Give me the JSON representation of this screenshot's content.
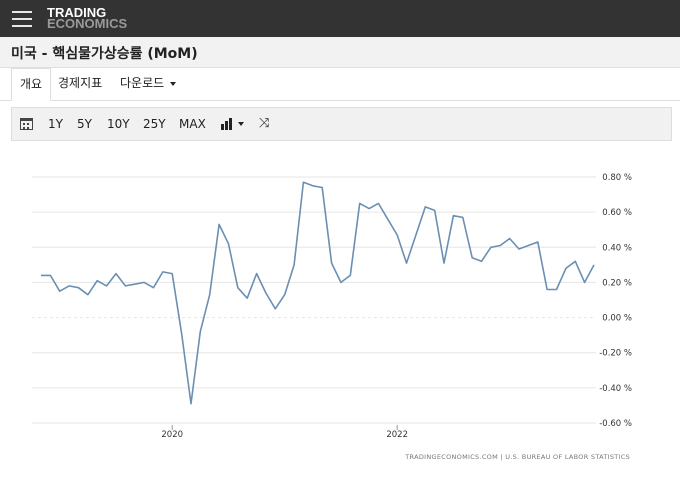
{
  "header": {
    "logo_line1": "TRADING",
    "logo_line2": "ECONOMICS",
    "menu_icon": "hamburger-menu-icon"
  },
  "title": "미국 - 핵심물가상승률 (MoM)",
  "tabs": [
    {
      "label": "개요",
      "active": true
    },
    {
      "label": "경제지표",
      "active": false
    },
    {
      "label": "다운로드",
      "active": false,
      "dropdown": true
    }
  ],
  "toolbar": {
    "calendar_icon": "calendar-icon",
    "ranges": [
      "1Y",
      "5Y",
      "10Y",
      "25Y",
      "MAX"
    ],
    "chart_type_icon": "bar-chart-icon",
    "compare_icon": "shuffle-icon"
  },
  "chart_data": {
    "type": "line",
    "title": "",
    "xlabel": "",
    "ylabel": "",
    "ylim": [
      -0.6,
      0.8
    ],
    "y_ticks": [
      0.8,
      0.6,
      0.4,
      0.2,
      0.0,
      -0.2,
      -0.4,
      -0.6
    ],
    "y_tick_labels": [
      "0.80 %",
      "0.60 %",
      "0.40 %",
      "0.20 %",
      "0.00 %",
      "-0.20 %",
      "-0.40 %",
      "-0.60 %"
    ],
    "x_ticks": [
      {
        "label": "2020",
        "index": 14
      },
      {
        "label": "2022",
        "index": 38
      }
    ],
    "grid": "horizontal",
    "line_color": "#6b8fb3",
    "series": [
      {
        "values": [
          0.24,
          0.24,
          0.15,
          0.18,
          0.17,
          0.13,
          0.21,
          0.18,
          0.25,
          0.18,
          0.19,
          0.2,
          0.17,
          0.26,
          0.25,
          -0.09,
          -0.49,
          -0.08,
          0.13,
          0.53,
          0.42,
          0.17,
          0.11,
          0.25,
          0.14,
          0.05,
          0.13,
          0.3,
          0.77,
          0.75,
          0.74,
          0.31,
          0.2,
          0.24,
          0.65,
          0.62,
          0.65,
          0.56,
          0.47,
          0.31,
          0.47,
          0.63,
          0.61,
          0.31,
          0.58,
          0.57,
          0.34,
          0.32,
          0.4,
          0.41,
          0.45,
          0.39,
          0.41,
          0.43,
          0.16,
          0.16,
          0.28,
          0.32,
          0.2,
          0.3
        ]
      }
    ],
    "source": "TRADINGECONOMICS.COM | U.S. BUREAU OF LABOR STATISTICS"
  }
}
